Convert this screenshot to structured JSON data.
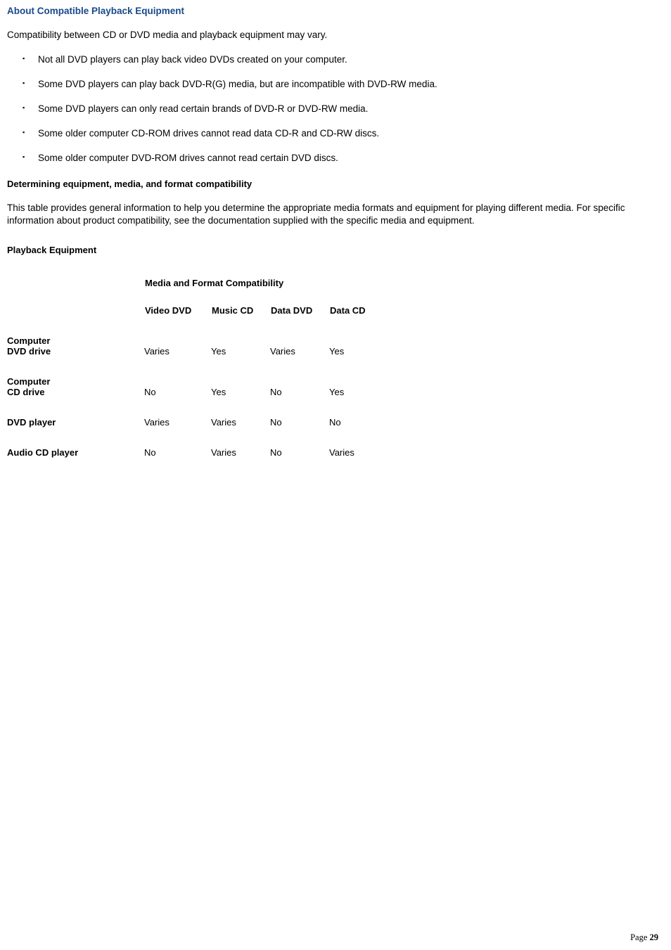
{
  "title": "About Compatible Playback Equipment",
  "intro": "Compatibility between CD or DVD media and playback equipment may vary.",
  "bullets": [
    "Not all DVD players can play back video DVDs created on your computer.",
    "Some DVD players can play back DVD-R(G) media, but are incompatible with DVD-RW media.",
    "Some DVD players can only read certain brands of DVD-R or DVD-RW media.",
    "Some older computer CD-ROM drives cannot read data CD-R and CD-RW discs.",
    "Some older computer DVD-ROM drives cannot read certain DVD discs."
  ],
  "determining_heading": "Determining equipment, media, and format compatibility",
  "determining_para": "This table provides general information to help you determine the appropriate media formats and equipment for playing different media. For specific information about product compatibility, see the documentation supplied with the specific media and equipment.",
  "playback_heading": "Playback Equipment",
  "table": {
    "span_header": "Media and Format Compatibility",
    "columns": [
      "Video DVD",
      "Music CD",
      "Data DVD",
      "Data CD"
    ],
    "rows": [
      {
        "label_line1": "Computer",
        "label_line2": "DVD drive",
        "cells": [
          "Varies",
          "Yes",
          "Varies",
          "Yes"
        ]
      },
      {
        "label_line1": "Computer",
        "label_line2": "CD drive",
        "cells": [
          "No",
          "Yes",
          "No",
          "Yes"
        ]
      },
      {
        "label_line1": "DVD player",
        "label_line2": "",
        "cells": [
          "Varies",
          "Varies",
          "No",
          "No"
        ]
      },
      {
        "label_line1": "Audio CD player",
        "label_line2": "",
        "cells": [
          "No",
          "Varies",
          "No",
          "Varies"
        ]
      }
    ]
  },
  "footer": {
    "label": "Page",
    "number": "29"
  },
  "colors": {
    "heading_blue": "#184a8a",
    "text": "#000000",
    "background": "#ffffff"
  }
}
